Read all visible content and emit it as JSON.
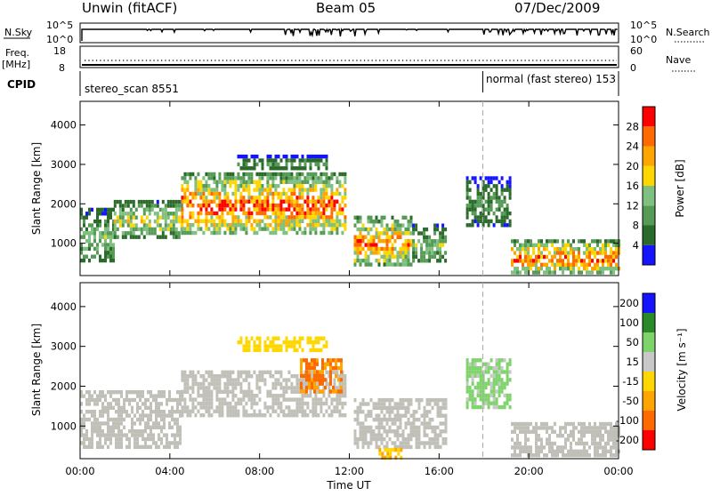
{
  "header": {
    "station": "Unwin (fitACF)",
    "beam": "Beam 05",
    "date": "07/Dec/2009"
  },
  "nsky_panel": {
    "left_label": "N.Sky",
    "left_ticks": [
      "10^5",
      "10^0"
    ],
    "right_ticks": [
      "10^5",
      "10^0"
    ],
    "right_label": "N.Search"
  },
  "freq_panel": {
    "label_freq": "Freq.",
    "label_unit": "[MHz]",
    "left_ticks": [
      "18",
      "8"
    ],
    "right_ticks": [
      "60",
      "0"
    ],
    "right_label": "Nave"
  },
  "cpid_panel": {
    "label": "CPID",
    "mode1": "stereo_scan 8551",
    "mode2": "normal (fast stereo) 153",
    "mode2_start_hour": 17.95
  },
  "colors": {
    "power": [
      "#1414ff",
      "#2a6a2a",
      "#559a55",
      "#7fbf7f",
      "#ffd700",
      "#ffa500",
      "#ff6a00",
      "#ff0000"
    ],
    "velocity": [
      "#ff0000",
      "#ff6a00",
      "#ffa500",
      "#ffd700",
      "#c8c8c8",
      "#7fd36b",
      "#2a8a2a",
      "#1414ff"
    ],
    "gray_ground_scatter": "#c0c0b8"
  },
  "chart_data": [
    {
      "type": "heatmap",
      "name": "power",
      "ylabel": "Slant Range [km]",
      "y_ticks": [
        "1000",
        "2000",
        "3000",
        "4000"
      ],
      "ylim": [
        180,
        4600
      ],
      "xlim": [
        0,
        24
      ],
      "colorbar_label": "Power [dB]",
      "colorbar_ticks": [
        "4",
        "8",
        "12",
        "16",
        "20",
        "24",
        "28"
      ],
      "clim": [
        0,
        32
      ],
      "echo_regions": [
        {
          "t0": 0.0,
          "t1": 1.5,
          "r0": 550,
          "r1": 1900,
          "peak_db": 14
        },
        {
          "t0": 1.5,
          "t1": 4.5,
          "r0": 1200,
          "r1": 2100,
          "peak_db": 18
        },
        {
          "t0": 4.5,
          "t1": 11.8,
          "r0": 1300,
          "r1": 2800,
          "peak_db": 28
        },
        {
          "t0": 7.0,
          "t1": 11.0,
          "r0": 2900,
          "r1": 3250,
          "peak_db": 10
        },
        {
          "t0": 12.2,
          "t1": 14.8,
          "r0": 500,
          "r1": 1700,
          "peak_db": 26
        },
        {
          "t0": 14.8,
          "t1": 16.3,
          "r0": 550,
          "r1": 1500,
          "peak_db": 14
        },
        {
          "t0": 17.2,
          "t1": 19.2,
          "r0": 1500,
          "r1": 2700,
          "peak_db": 10
        },
        {
          "t0": 19.2,
          "t1": 24.0,
          "r0": 300,
          "r1": 1100,
          "peak_db": 28
        }
      ]
    },
    {
      "type": "heatmap",
      "name": "velocity",
      "ylabel": "Slant Range [km]",
      "y_ticks": [
        "1000",
        "2000",
        "3000",
        "4000"
      ],
      "ylim": [
        180,
        4600
      ],
      "xlim": [
        0,
        24
      ],
      "xlabel": "Time UT",
      "x_ticks": [
        "00:00",
        "04:00",
        "08:00",
        "12:00",
        "16:00",
        "20:00",
        "00:00"
      ],
      "colorbar_label": "Velocity [m s⁻¹]",
      "colorbar_ticks": [
        "200",
        "100",
        "50",
        "15",
        "-15",
        "-50",
        "-100",
        "-200"
      ],
      "echo_regions": [
        {
          "t0": 0.0,
          "t1": 4.5,
          "r0": 500,
          "r1": 1900,
          "class": "ground"
        },
        {
          "t0": 4.5,
          "t1": 11.8,
          "r0": 1300,
          "r1": 2400,
          "class": "ground"
        },
        {
          "t0": 9.8,
          "t1": 11.6,
          "r0": 1900,
          "r1": 2700,
          "velocity": -120
        },
        {
          "t0": 7.0,
          "t1": 11.0,
          "r0": 2950,
          "r1": 3250,
          "velocity": -30
        },
        {
          "t0": 12.2,
          "t1": 16.3,
          "r0": 500,
          "r1": 1700,
          "class": "ground"
        },
        {
          "t0": 13.3,
          "t1": 14.3,
          "r0": 250,
          "r1": 450,
          "velocity": -60
        },
        {
          "t0": 17.2,
          "t1": 19.2,
          "r0": 1500,
          "r1": 2700,
          "velocity": 20
        },
        {
          "t0": 19.2,
          "t1": 24.0,
          "r0": 300,
          "r1": 1100,
          "class": "ground"
        }
      ]
    }
  ]
}
